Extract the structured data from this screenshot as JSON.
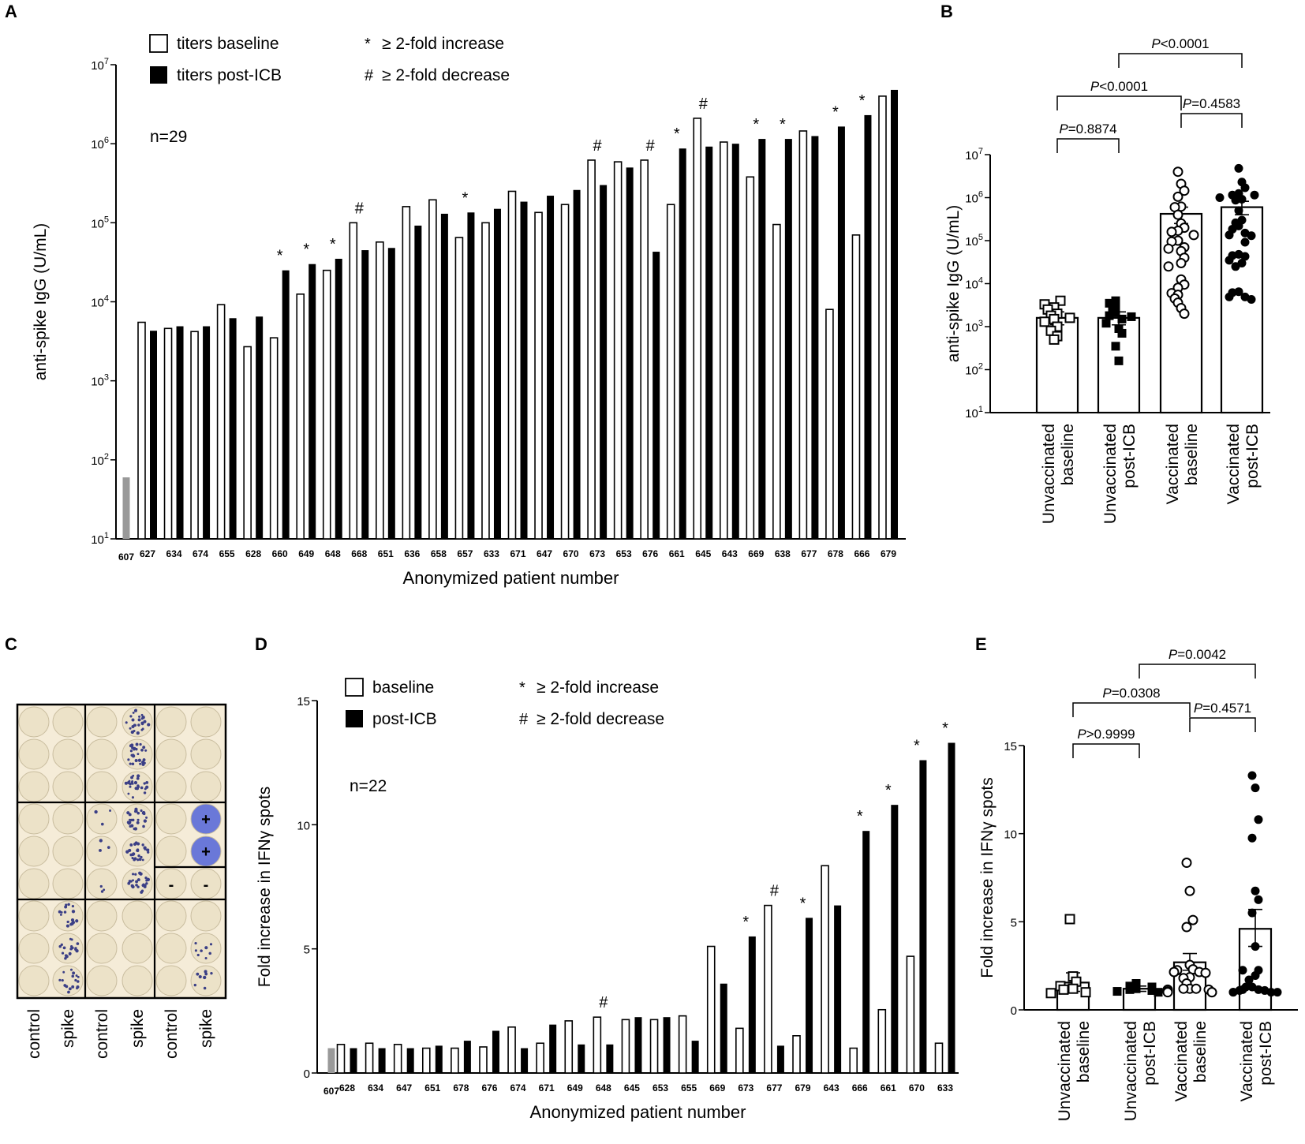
{
  "colors": {
    "bar_baseline_fill": "#ffffff",
    "bar_post_fill": "#000000",
    "control_bar": "#999999",
    "plate_bg": "#f5ecd8",
    "well_fill": "#ece2c8",
    "spot": "#3b3f86",
    "positive_well": "#6a78d8"
  },
  "chart_data": [
    {
      "panel": "A",
      "type": "bar",
      "scale": "log",
      "ylabel": "anti-spike IgG (U/mL)",
      "xlabel": "Anonymized patient number",
      "ylim": [
        10,
        10000000
      ],
      "yticks": [
        "10",
        "100",
        "1000",
        "10000",
        "100000",
        "1000000",
        "10000000"
      ],
      "legend": [
        {
          "symbol": "open",
          "label": "titers baseline"
        },
        {
          "symbol": "filled",
          "label": "titers post-ICB"
        },
        {
          "symbol": "*",
          "label": "≥ 2-fold increase"
        },
        {
          "symbol": "#",
          "label": "≥ 2-fold decrease"
        }
      ],
      "n_label": "n=29",
      "control": {
        "category": "607",
        "value": 60
      },
      "categories": [
        "627",
        "634",
        "674",
        "655",
        "628",
        "660",
        "649",
        "648",
        "668",
        "651",
        "636",
        "658",
        "657",
        "633",
        "671",
        "647",
        "670",
        "673",
        "653",
        "676",
        "661",
        "645",
        "643",
        "669",
        "638",
        "677",
        "678",
        "666",
        "679"
      ],
      "series": [
        {
          "name": "titers baseline",
          "values": [
            5500,
            4600,
            4200,
            9200,
            2700,
            3500,
            12500,
            25000,
            100000,
            57000,
            160000,
            195000,
            65000,
            100000,
            250000,
            135000,
            170000,
            620000,
            590000,
            620000,
            170000,
            2100000,
            1050000,
            380000,
            95000,
            1450000,
            8000,
            70000,
            4000000
          ]
        },
        {
          "name": "titers post-ICB",
          "values": [
            4300,
            4900,
            4900,
            6200,
            6500,
            25000,
            30000,
            35000,
            45000,
            48000,
            92000,
            130000,
            135000,
            150000,
            185000,
            220000,
            260000,
            300000,
            500000,
            43000,
            870000,
            920000,
            1000000,
            1150000,
            1150000,
            1250000,
            1650000,
            2300000,
            4800000
          ]
        }
      ],
      "annotations": [
        "",
        "",
        "",
        "",
        "",
        "*",
        "*",
        "*",
        "#",
        "",
        "",
        "",
        "*",
        "",
        "",
        "",
        "",
        "#",
        "",
        "#",
        "*",
        "#",
        "",
        "*",
        "*",
        "",
        "*",
        "*",
        ""
      ]
    },
    {
      "panel": "B",
      "type": "scatter",
      "scale": "log",
      "ylabel": "anti-spike IgG (U/mL)",
      "ylim": [
        10,
        10000000
      ],
      "yticks": [
        "10",
        "100",
        "1000",
        "10000",
        "100000",
        "1000000",
        "10000000"
      ],
      "groups": [
        {
          "label_line1": "Unvaccinated",
          "label_line2": "baseline",
          "marker": "open-square",
          "mean": 1600,
          "sem_low": 1100,
          "sem_high": 2200,
          "values": [
            1500,
            2500,
            4000,
            3300,
            2000,
            1800,
            1300,
            1000,
            800,
            500,
            600,
            1600,
            2800
          ]
        },
        {
          "label_line1": "Unvaccinated",
          "label_line2": "post-ICB",
          "marker": "filled-square",
          "mean": 1600,
          "sem_low": 1100,
          "sem_high": 2200,
          "values": [
            4000,
            3500,
            2500,
            2100,
            1800,
            1500,
            1200,
            900,
            700,
            350,
            160,
            1700,
            2900
          ]
        },
        {
          "label_line1": "Vaccinated",
          "label_line2": "baseline",
          "marker": "open-circle",
          "mean": 420000,
          "sem_low": 250000,
          "sem_high": 600000,
          "values": [
            4000000,
            2100000,
            1450000,
            1050000,
            620000,
            600000,
            400000,
            250000,
            200000,
            170000,
            160000,
            135000,
            100000,
            95000,
            70000,
            65000,
            57000,
            40000,
            25000,
            12500,
            9500,
            8000,
            6000,
            4500,
            3600,
            2700,
            2000,
            5500,
            30000
          ]
        },
        {
          "label_line1": "Vaccinated",
          "label_line2": "post-ICB",
          "marker": "filled-circle",
          "mean": 600000,
          "sem_low": 400000,
          "sem_high": 820000,
          "values": [
            4800000,
            2300000,
            1700000,
            1250000,
            1150000,
            1150000,
            1000000,
            920000,
            870000,
            500000,
            300000,
            260000,
            220000,
            185000,
            150000,
            135000,
            130000,
            92000,
            48000,
            45000,
            43000,
            35000,
            30000,
            25000,
            6500,
            6200,
            4900,
            4900,
            4300
          ]
        }
      ],
      "comparisons": [
        {
          "text": "P=0.8874",
          "from": 0,
          "to": 1
        },
        {
          "text": "P=0.4583",
          "from": 2,
          "to": 3
        },
        {
          "text": "P<0.0001",
          "from": 0,
          "to": 2
        },
        {
          "text": "P<0.0001",
          "from": 1,
          "to": 3
        }
      ]
    },
    {
      "panel": "D",
      "type": "bar",
      "scale": "linear",
      "ylabel": "Fold increase in IFNγ spots",
      "xlabel": "Anonymized patient number",
      "ylim": [
        0,
        15
      ],
      "yticks": [
        "0",
        "5",
        "10",
        "15"
      ],
      "legend": [
        {
          "symbol": "open",
          "label": "baseline"
        },
        {
          "symbol": "filled",
          "label": "post-ICB"
        },
        {
          "symbol": "*",
          "label": "≥ 2-fold increase"
        },
        {
          "symbol": "#",
          "label": "≥ 2-fold decrease"
        }
      ],
      "n_label": "n=22",
      "control": {
        "category": "607",
        "value": 1.0
      },
      "categories": [
        "628",
        "634",
        "647",
        "651",
        "678",
        "676",
        "674",
        "671",
        "649",
        "648",
        "645",
        "653",
        "655",
        "669",
        "673",
        "677",
        "679",
        "643",
        "666",
        "661",
        "670",
        "633"
      ],
      "series": [
        {
          "name": "baseline",
          "values": [
            1.15,
            1.2,
            1.15,
            1.0,
            1.0,
            1.05,
            1.85,
            1.2,
            2.1,
            2.25,
            2.15,
            2.15,
            2.3,
            5.1,
            1.8,
            6.75,
            1.5,
            8.35,
            1.0,
            2.55,
            4.7,
            1.2
          ]
        },
        {
          "name": "post-ICB",
          "values": [
            1.0,
            1.0,
            1.0,
            1.1,
            1.3,
            1.7,
            1.0,
            1.95,
            1.15,
            1.15,
            2.25,
            2.25,
            1.3,
            3.6,
            5.5,
            1.1,
            6.25,
            6.75,
            9.75,
            10.8,
            12.6,
            13.3
          ]
        }
      ],
      "annotations": [
        "",
        "",
        "",
        "",
        "",
        "",
        "",
        "",
        "",
        "#",
        "",
        "",
        "",
        "",
        "*",
        "#",
        "*",
        "",
        "*",
        "*",
        "*",
        "*"
      ]
    },
    {
      "panel": "E",
      "type": "scatter",
      "scale": "linear",
      "ylabel": "Fold increase in IFNγ spots",
      "ylim": [
        0,
        15
      ],
      "yticks": [
        "0",
        "5",
        "10",
        "15"
      ],
      "groups": [
        {
          "label_line1": "Unvaccinated",
          "label_line2": "baseline",
          "marker": "open-square",
          "mean": 1.55,
          "sem_low": 1.05,
          "sem_high": 2.1,
          "values": [
            5.15,
            1.9,
            1.6,
            1.35,
            1.2,
            1.0,
            0.95,
            1.15
          ]
        },
        {
          "label_line1": "Unvaccinated",
          "label_line2": "post-ICB",
          "marker": "filled-square",
          "mean": 1.2,
          "sem_low": 1.05,
          "sem_high": 1.35,
          "values": [
            1.5,
            1.35,
            1.3,
            1.2,
            1.15,
            1.1,
            1.05,
            1.0
          ]
        },
        {
          "label_line1": "Vaccinated",
          "label_line2": "baseline",
          "marker": "open-circle",
          "mean": 2.7,
          "sem_low": 2.25,
          "sem_high": 3.2,
          "values": [
            8.35,
            6.75,
            5.1,
            4.7,
            2.55,
            2.3,
            2.25,
            2.15,
            2.15,
            2.1,
            1.85,
            1.8,
            1.5,
            1.2,
            1.2,
            1.15,
            1.15,
            1.05,
            1.0,
            1.0,
            1.0,
            1.2
          ]
        },
        {
          "label_line1": "Vaccinated",
          "label_line2": "post-ICB",
          "marker": "filled-circle",
          "mean": 4.6,
          "sem_low": 3.6,
          "sem_high": 5.7,
          "values": [
            13.3,
            12.6,
            10.8,
            9.75,
            6.75,
            6.25,
            5.5,
            3.6,
            2.25,
            2.25,
            1.95,
            1.7,
            1.3,
            1.3,
            1.15,
            1.15,
            1.1,
            1.1,
            1.0,
            1.0,
            1.0,
            1.0
          ]
        }
      ],
      "comparisons": [
        {
          "text": "P>0.9999",
          "from": 0,
          "to": 1
        },
        {
          "text": "P=0.4571",
          "from": 2,
          "to": 3
        },
        {
          "text": "P=0.0308",
          "from": 0,
          "to": 2
        },
        {
          "text": "P=0.0042",
          "from": 1,
          "to": 3
        }
      ]
    }
  ],
  "panel_c": {
    "panel": "C",
    "column_labels": [
      "control",
      "spike",
      "control",
      "spike",
      "control",
      "spike"
    ],
    "positive_mark": "+",
    "negative_mark": "-"
  }
}
